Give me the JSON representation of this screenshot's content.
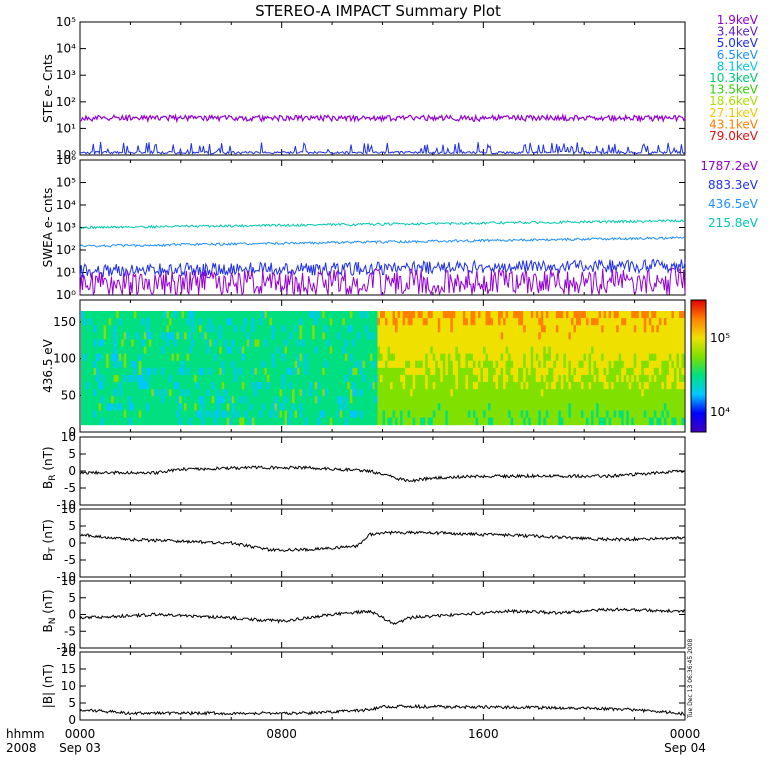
{
  "chart_data": {
    "type": "line",
    "title": "STEREO-A IMPACT Summary Plot",
    "timestamp": "Tue Dec 13 06:36:45 2008",
    "x_axis": {
      "label_line1": "hhmm",
      "label_line2": "2008",
      "ticks": [
        {
          "label": "0000",
          "sublabel": "Sep 03",
          "hour": 0
        },
        {
          "label": "0800",
          "sublabel": "",
          "hour": 8
        },
        {
          "label": "1600",
          "sublabel": "",
          "hour": 16
        },
        {
          "label": "0000",
          "sublabel": "Sep 04",
          "hour": 24
        }
      ],
      "range_hours": [
        0,
        24
      ]
    },
    "panels": [
      {
        "id": "ste",
        "ylabel": "STE e- Cnts",
        "scale": "log",
        "ylim": [
          1,
          100000
        ],
        "tick_labels": [
          "10⁰",
          "10¹",
          "10²",
          "10³",
          "10⁴",
          "10⁵"
        ],
        "legend": [
          {
            "label": "1.9keV",
            "color": "#9400d3"
          },
          {
            "label": "3.4keV",
            "color": "#5a1fd0"
          },
          {
            "label": "5.0keV",
            "color": "#2030e8"
          },
          {
            "label": "6.5keV",
            "color": "#1e90ff"
          },
          {
            "label": "8.1keV",
            "color": "#00c8d8"
          },
          {
            "label": "10.3keV",
            "color": "#00c870"
          },
          {
            "label": "13.5keV",
            "color": "#30d000"
          },
          {
            "label": "18.6keV",
            "color": "#a8e000"
          },
          {
            "label": "27.1keV",
            "color": "#f0c800"
          },
          {
            "label": "43.1keV",
            "color": "#ff8000"
          },
          {
            "label": "79.0keV",
            "color": "#e01010"
          }
        ],
        "series": [
          {
            "name": "1.9keV",
            "level": 25
          },
          {
            "name": "5.0keV",
            "level": 1.3
          }
        ]
      },
      {
        "id": "swea",
        "ylabel": "SWEA e- cnts",
        "scale": "log",
        "ylim": [
          1,
          1000000
        ],
        "tick_labels": [
          "10⁰",
          "10¹",
          "10²",
          "10³",
          "10⁴",
          "10⁵",
          "10⁶"
        ],
        "legend": [
          {
            "label": "1787.2eV",
            "color": "#9400d3"
          },
          {
            "label": "883.3eV",
            "color": "#2030e8"
          },
          {
            "label": "436.5eV",
            "color": "#1e90ff"
          },
          {
            "label": "215.8eV",
            "color": "#00c8b0"
          }
        ],
        "series": [
          {
            "name": "215.8eV",
            "start": 1000,
            "end": 2000
          },
          {
            "name": "436.5eV",
            "start": 150,
            "end": 350
          },
          {
            "name": "883.3eV",
            "start": 12,
            "end": 20
          },
          {
            "name": "1787.2eV",
            "start": 3,
            "end": 4
          }
        ]
      },
      {
        "id": "pad",
        "type": "heatmap",
        "ylabel": "436.5 eV",
        "ylim": [
          0,
          180
        ],
        "tick_labels": [
          "0",
          "50",
          "100",
          "150"
        ],
        "colorbar_labels": [
          "10⁴",
          "10⁵"
        ],
        "colorbar_stops": [
          "#4000c0",
          "#0000ff",
          "#00c8ff",
          "#00e080",
          "#80e000",
          "#f0e000",
          "#ff8000",
          "#e00000"
        ]
      },
      {
        "id": "br",
        "ylabel": "B",
        "ylabel_sub": "R",
        "ylabel_unit": "(nT)",
        "ylim": [
          -10,
          10
        ],
        "tick_labels": [
          "-10",
          "-5",
          "0",
          "5",
          "10"
        ],
        "keypoints": [
          [
            0,
            -0.5
          ],
          [
            3,
            -0.5
          ],
          [
            4,
            0.5
          ],
          [
            7,
            1
          ],
          [
            9,
            1
          ],
          [
            11.5,
            0
          ],
          [
            13,
            -3
          ],
          [
            14,
            -2
          ],
          [
            16,
            -1.5
          ],
          [
            19,
            -1.5
          ],
          [
            21,
            -1.5
          ],
          [
            24,
            0
          ]
        ]
      },
      {
        "id": "bt",
        "ylabel": "B",
        "ylabel_sub": "T",
        "ylabel_unit": "(nT)",
        "ylim": [
          -10,
          10
        ],
        "tick_labels": [
          "-10",
          "-5",
          "0",
          "5",
          "10"
        ],
        "keypoints": [
          [
            0,
            2.5
          ],
          [
            2,
            1
          ],
          [
            4,
            0.5
          ],
          [
            6,
            0
          ],
          [
            7.5,
            -2
          ],
          [
            9,
            -2
          ],
          [
            11,
            -1
          ],
          [
            11.5,
            2.5
          ],
          [
            12,
            3
          ],
          [
            14,
            3
          ],
          [
            18,
            2
          ],
          [
            21,
            1
          ],
          [
            24,
            1.5
          ]
        ]
      },
      {
        "id": "bn",
        "ylabel": "B",
        "ylabel_sub": "N",
        "ylabel_unit": "(nT)",
        "ylim": [
          -10,
          10
        ],
        "tick_labels": [
          "-10",
          "-5",
          "0",
          "5",
          "10"
        ],
        "keypoints": [
          [
            0,
            -1
          ],
          [
            3,
            0
          ],
          [
            6,
            -1
          ],
          [
            8,
            -2
          ],
          [
            10,
            0
          ],
          [
            11.5,
            1
          ],
          [
            12.5,
            -3
          ],
          [
            13,
            -1
          ],
          [
            15,
            0
          ],
          [
            17,
            1
          ],
          [
            19,
            0.5
          ],
          [
            21,
            1.5
          ],
          [
            24,
            1
          ]
        ]
      },
      {
        "id": "bmag",
        "ylabel": "|B| (nT)",
        "ylim": [
          0,
          20
        ],
        "tick_labels": [
          "0",
          "5",
          "10",
          "15",
          "20"
        ],
        "keypoints": [
          [
            0,
            3
          ],
          [
            2,
            2
          ],
          [
            5,
            2
          ],
          [
            9,
            2
          ],
          [
            11.5,
            3
          ],
          [
            12,
            4
          ],
          [
            16,
            3.8
          ],
          [
            20,
            3.5
          ],
          [
            22,
            3
          ],
          [
            24,
            1.8
          ]
        ]
      }
    ]
  }
}
